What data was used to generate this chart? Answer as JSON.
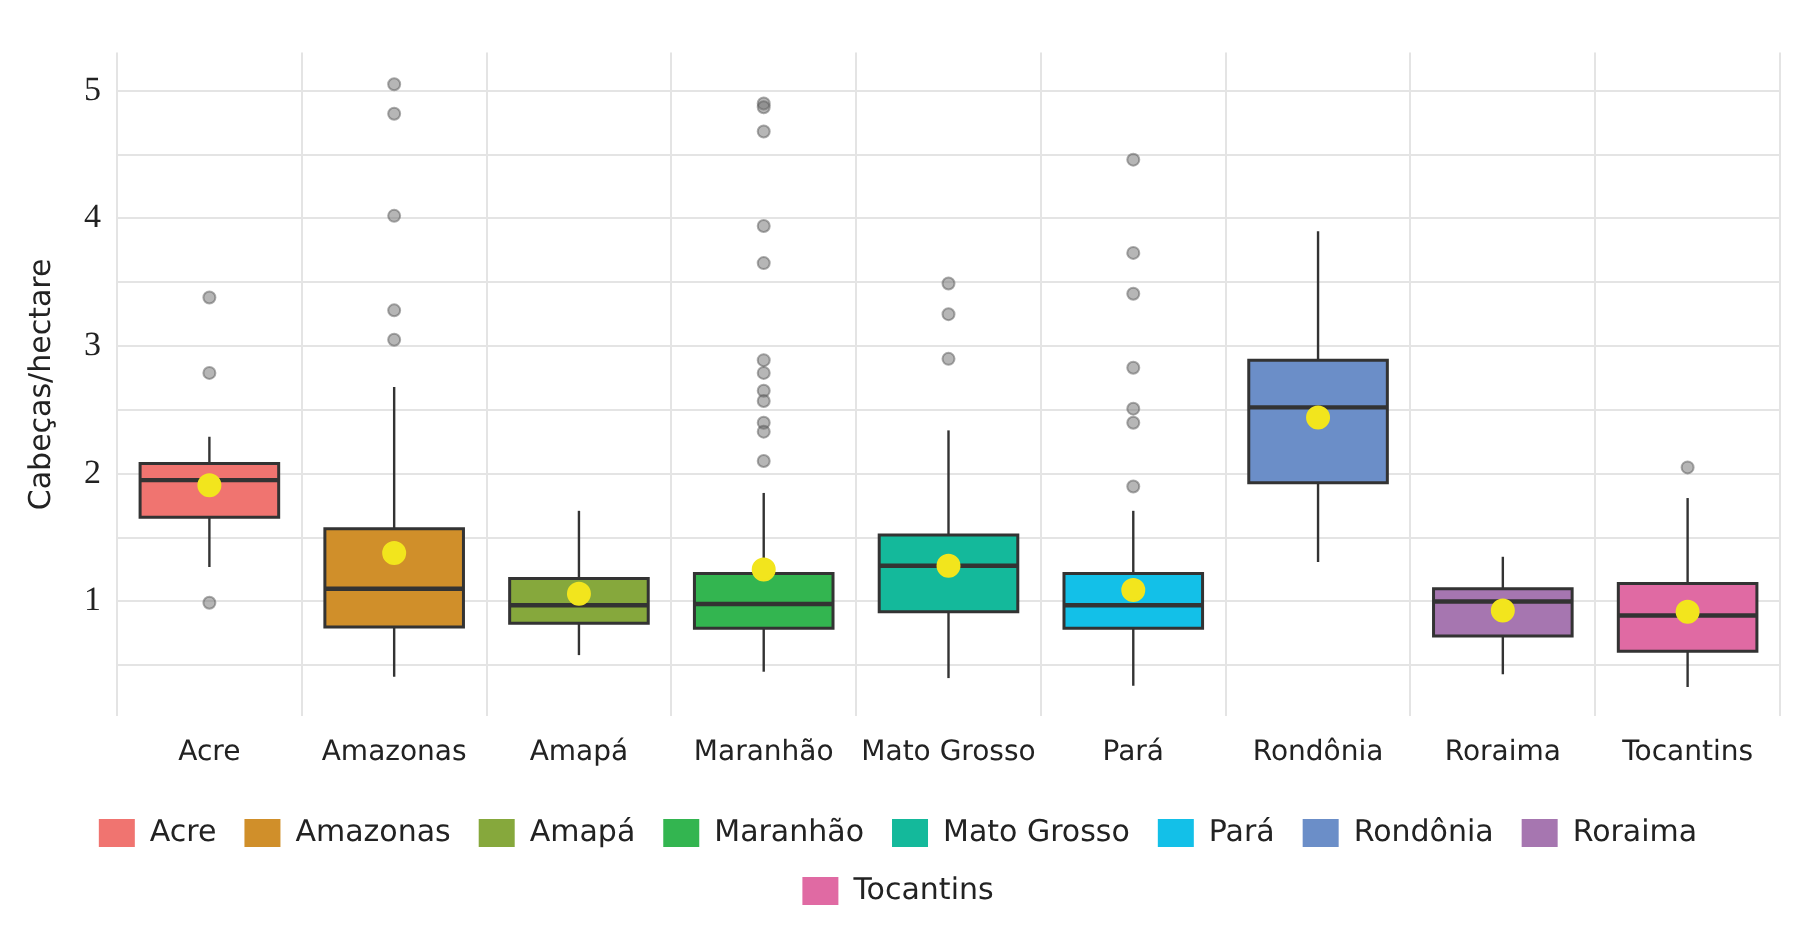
{
  "chart_data": {
    "type": "box",
    "ylabel": "Cabeças/hectare",
    "categories": [
      "Acre",
      "Amazonas",
      "Amapá",
      "Maranhão",
      "Mato Grosso",
      "Pará",
      "Rondônia",
      "Roraima",
      "Tocantins"
    ],
    "series": [
      {
        "name": "Acre",
        "color": "#f07470",
        "boxes": [
          {
            "low": 1.27,
            "q1": 1.66,
            "median": 1.95,
            "q3": 2.08,
            "high": 2.29,
            "mean": 1.91,
            "outliers": [
              3.38,
              2.79,
              0.99
            ]
          },
          null,
          null,
          null,
          null,
          null,
          null,
          null,
          null
        ]
      },
      {
        "name": "Amazonas",
        "color": "#d08f2a",
        "boxes": [
          null,
          {
            "low": 0.41,
            "q1": 0.8,
            "median": 1.1,
            "q3": 1.57,
            "high": 2.68,
            "mean": 1.38,
            "outliers": [
              5.05,
              4.82,
              4.02,
              3.28,
              3.05
            ]
          },
          null,
          null,
          null,
          null,
          null,
          null,
          null
        ]
      },
      {
        "name": "Amapá",
        "color": "#86a83c",
        "boxes": [
          null,
          null,
          {
            "low": 0.58,
            "q1": 0.83,
            "median": 0.97,
            "q3": 1.18,
            "high": 1.71,
            "mean": 1.06
          },
          null,
          null,
          null,
          null,
          null,
          null
        ]
      },
      {
        "name": "Maranhão",
        "color": "#33b550",
        "boxes": [
          null,
          null,
          null,
          {
            "low": 0.45,
            "q1": 0.79,
            "median": 0.98,
            "q3": 1.22,
            "high": 1.85,
            "mean": 1.25,
            "outliers": [
              4.9,
              4.87,
              4.68,
              3.94,
              3.65,
              2.89,
              2.79,
              2.65,
              2.57,
              2.4,
              2.33,
              2.1
            ]
          },
          null,
          null,
          null,
          null,
          null
        ]
      },
      {
        "name": "Mato Grosso",
        "color": "#14b99b",
        "boxes": [
          null,
          null,
          null,
          null,
          {
            "low": 0.4,
            "q1": 0.92,
            "median": 1.28,
            "q3": 1.52,
            "high": 2.34,
            "mean": 1.28,
            "outliers": [
              3.49,
              3.25,
              2.9
            ]
          },
          null,
          null,
          null,
          null
        ]
      },
      {
        "name": "Pará",
        "color": "#13c0e8",
        "boxes": [
          null,
          null,
          null,
          null,
          null,
          {
            "low": 0.34,
            "q1": 0.79,
            "median": 0.97,
            "q3": 1.22,
            "high": 1.71,
            "mean": 1.09,
            "outliers": [
              4.46,
              3.73,
              3.41,
              2.83,
              2.51,
              2.4,
              1.9
            ]
          },
          null,
          null,
          null
        ]
      },
      {
        "name": "Rondônia",
        "color": "#6b8ec8",
        "boxes": [
          null,
          null,
          null,
          null,
          null,
          null,
          {
            "low": 1.31,
            "q1": 1.93,
            "median": 2.52,
            "q3": 2.89,
            "high": 3.9,
            "mean": 2.44
          },
          null,
          null
        ]
      },
      {
        "name": "Roraima",
        "color": "#a676b0",
        "boxes": [
          null,
          null,
          null,
          null,
          null,
          null,
          null,
          {
            "low": 0.43,
            "q1": 0.73,
            "median": 1.0,
            "q3": 1.1,
            "high": 1.35,
            "mean": 0.93
          },
          null
        ]
      },
      {
        "name": "Tocantins",
        "color": "#e06aa3",
        "boxes": [
          null,
          null,
          null,
          null,
          null,
          null,
          null,
          null,
          {
            "low": 0.33,
            "q1": 0.61,
            "median": 0.89,
            "q3": 1.14,
            "high": 1.81,
            "mean": 0.92,
            "outliers": [
              2.05
            ]
          }
        ]
      }
    ],
    "ylim": [
      0.1,
      5.3
    ],
    "yticks": [
      {
        "value": 0.5,
        "label": null
      },
      1,
      {
        "value": 1.5,
        "label": null
      },
      2,
      {
        "value": 2.5,
        "label": null
      },
      3,
      {
        "value": 3.5,
        "label": null
      },
      4,
      {
        "value": 4.5,
        "label": null
      },
      5
    ],
    "grid": true,
    "legend": "bottom"
  }
}
